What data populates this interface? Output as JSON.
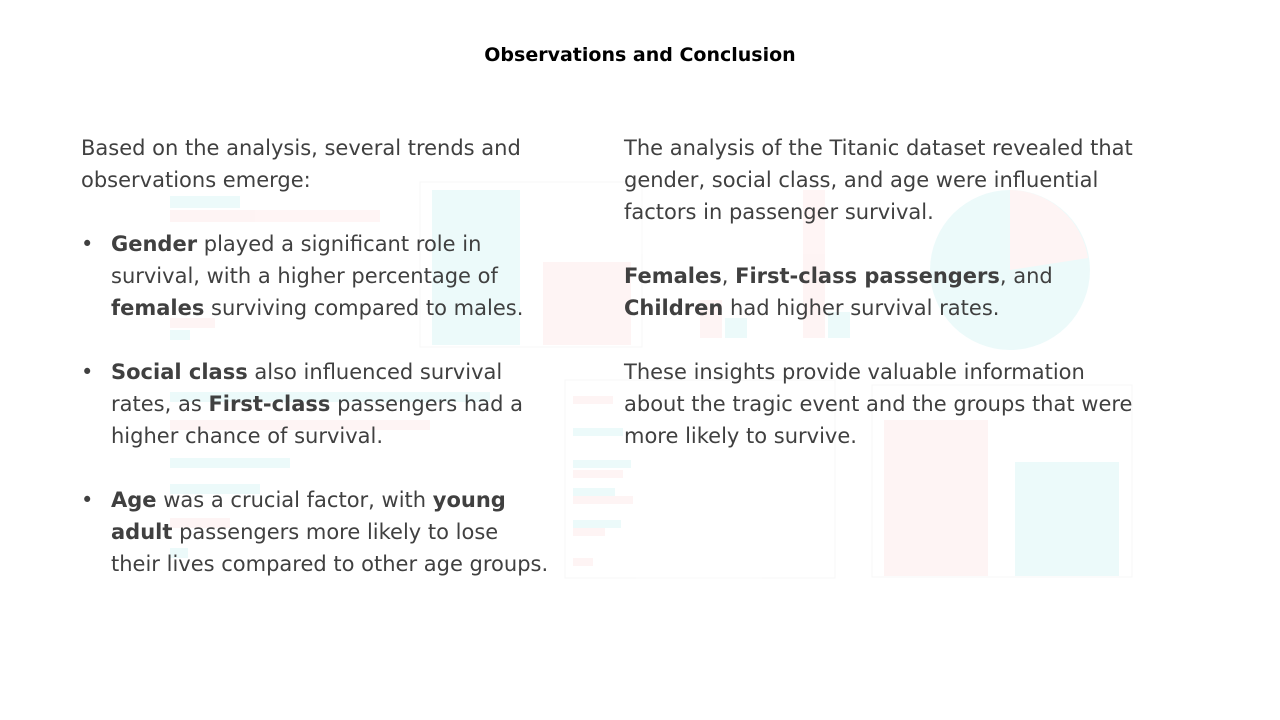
{
  "title": "Observations and Conclusion",
  "left": {
    "intro": "Based on the analysis, several trends and observations emerge:",
    "bullets": [
      {
        "b1": "Gender",
        "t1": " played a significant role in survival, with a higher percentage of ",
        "b2": "females",
        "t2": " surviving compared to males."
      },
      {
        "b1": "Social class",
        "t1": " also influenced survival rates, as ",
        "b2": "First-class",
        "t2": " passengers had a higher chance of survival."
      },
      {
        "b1": "Age",
        "t1": " was a crucial factor, with ",
        "b2": "young adult",
        "t2": " passengers more likely to lose their lives compared to other age groups."
      }
    ]
  },
  "right": {
    "p1": "The analysis of the Titanic dataset revealed that gender, social class, and age were influential factors in passenger survival.",
    "p2": {
      "b1": "Females",
      "t1": ", ",
      "b2": "First-class passengers",
      "t2": ", and ",
      "b3": "Children",
      "t3": " had higher survival rates."
    },
    "p3": "These insights provide valuable information about the tragic event and the groups that were more likely to survive."
  },
  "colors": {
    "title": "#000000",
    "body_text": "#404040",
    "watermark_red": "#f8766d",
    "watermark_teal": "#00bfc4"
  }
}
